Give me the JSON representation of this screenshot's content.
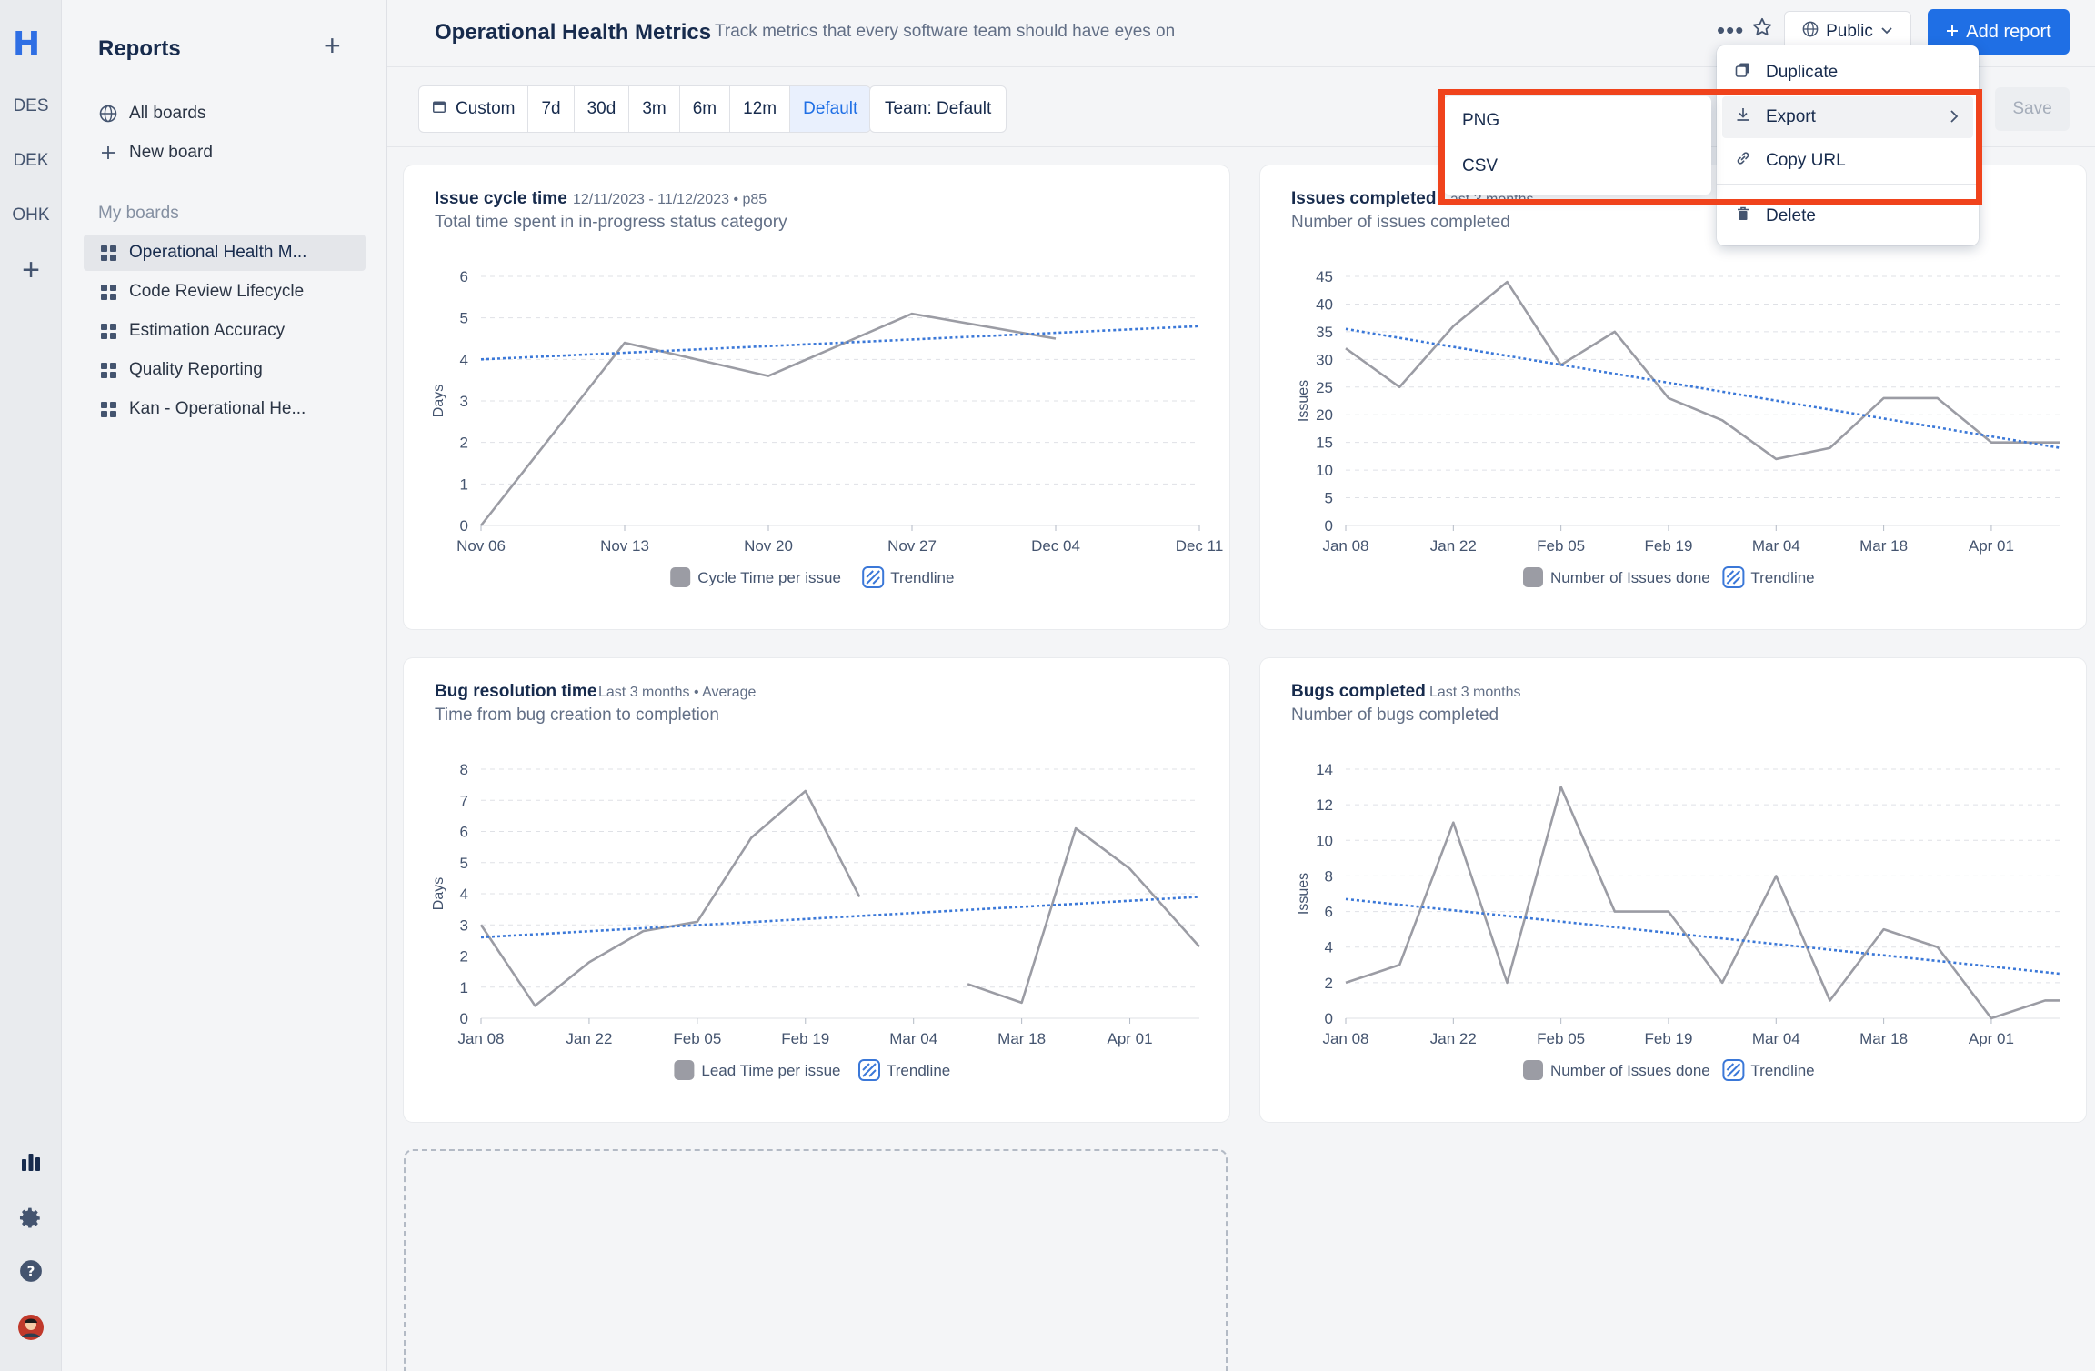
{
  "rail": {
    "logo": "H",
    "projects": [
      "DES",
      "DEK",
      "OHK"
    ],
    "add": "+"
  },
  "sidebar": {
    "title": "Reports",
    "add_label": "+",
    "nav": [
      {
        "label": "All boards",
        "icon": "globe-icon"
      },
      {
        "label": "New board",
        "icon": "plus-icon"
      }
    ],
    "section_label": "My boards",
    "boards": [
      {
        "label": "Operational Health M...",
        "active": true
      },
      {
        "label": "Code Review Lifecycle",
        "active": false
      },
      {
        "label": "Estimation Accuracy",
        "active": false
      },
      {
        "label": "Quality Reporting",
        "active": false
      },
      {
        "label": "Kan - Operational He...",
        "active": false
      }
    ]
  },
  "header": {
    "title": "Operational Health Metrics",
    "description": "Track metrics that every software team should have eyes on",
    "more_label": "•••",
    "visibility_label": "Public",
    "add_report_label": "Add report"
  },
  "toolbar": {
    "custom_label": "Custom",
    "ranges": [
      "7d",
      "30d",
      "3m",
      "6m",
      "12m",
      "Default"
    ],
    "selected_range": "Default",
    "team_label": "Team: Default",
    "save_label": "Save"
  },
  "menu": {
    "items": [
      "Duplicate",
      "Export",
      "Copy URL",
      "Delete"
    ],
    "highlighted": "Export",
    "export_submenu": [
      "PNG",
      "CSV"
    ]
  },
  "colors": {
    "accent": "#1f6fe5",
    "trend": "#3b78d8",
    "series": "#9b9ca4",
    "highlight": "#f0431c"
  },
  "cards": [
    {
      "title": "Issue cycle time",
      "meta": "12/11/2023 - 11/12/2023 • p85",
      "subtitle": "Total time spent in in-progress status category",
      "legend": [
        "Cycle Time per issue",
        "Trendline"
      ]
    },
    {
      "title": "Issues completed",
      "meta": "Last 3 months",
      "subtitle": "Number of issues completed",
      "legend": [
        "Number of Issues done",
        "Trendline"
      ]
    },
    {
      "title": "Bug resolution time",
      "meta": "Last 3 months • Average",
      "subtitle": "Time from bug creation to completion",
      "legend": [
        "Lead Time per issue",
        "Trendline"
      ]
    },
    {
      "title": "Bugs completed",
      "meta": "Last 3 months",
      "subtitle": "Number of bugs completed",
      "legend": [
        "Number of Issues done",
        "Trendline"
      ]
    }
  ],
  "chart_data": [
    {
      "type": "line",
      "ylabel": "Days",
      "ylim": [
        0,
        6
      ],
      "yticks": [
        0,
        1,
        2,
        3,
        4,
        5,
        6
      ],
      "xlim": [
        0,
        35
      ],
      "xtick_labels": [
        "Nov 06",
        "Nov 13",
        "Nov 20",
        "Nov 27",
        "Dec 04",
        "Dec 11"
      ],
      "xtick_pos": [
        0,
        7,
        14,
        21,
        28,
        35
      ],
      "series": [
        {
          "name": "Cycle Time per issue",
          "x": [
            0,
            7,
            14,
            21,
            28
          ],
          "y": [
            0,
            4.4,
            3.6,
            5.1,
            4.5
          ]
        },
        {
          "name": "Trendline",
          "x": [
            0,
            35
          ],
          "y": [
            4.0,
            4.8
          ]
        }
      ]
    },
    {
      "type": "line",
      "ylabel": "Issues",
      "ylim": [
        0,
        45
      ],
      "yticks": [
        0,
        5,
        10,
        15,
        20,
        25,
        30,
        35,
        40,
        45
      ],
      "xlim": [
        0,
        93
      ],
      "xtick_labels": [
        "Jan 08",
        "Jan 22",
        "Feb 05",
        "Feb 19",
        "Mar 04",
        "Mar 18",
        "Apr 01"
      ],
      "xtick_pos": [
        0,
        14,
        28,
        42,
        56,
        70,
        84
      ],
      "series": [
        {
          "name": "Number of Issues done",
          "x": [
            0,
            7,
            14,
            21,
            28,
            35,
            42,
            49,
            56,
            63,
            70,
            77,
            84,
            91,
            93
          ],
          "y": [
            32,
            25,
            36,
            44,
            29,
            35,
            23,
            19,
            12,
            14,
            23,
            23,
            15,
            15,
            15
          ]
        },
        {
          "name": "Trendline",
          "x": [
            0,
            93
          ],
          "y": [
            35.5,
            14
          ]
        }
      ]
    },
    {
      "type": "line",
      "ylabel": "Days",
      "ylim": [
        0,
        8
      ],
      "yticks": [
        0,
        1,
        2,
        3,
        4,
        5,
        6,
        7,
        8
      ],
      "xlim": [
        0,
        93
      ],
      "xtick_labels": [
        "Jan 08",
        "Jan 22",
        "Feb 05",
        "Feb 19",
        "Mar 04",
        "Mar 18",
        "Apr 01"
      ],
      "xtick_pos": [
        0,
        14,
        28,
        42,
        56,
        70,
        84
      ],
      "series": [
        {
          "name": "Lead Time per issue",
          "segments": [
            {
              "x": [
                0,
                7,
                14,
                21,
                28,
                35,
                42,
                49
              ],
              "y": [
                3.0,
                0.4,
                1.8,
                2.8,
                3.1,
                5.8,
                7.3,
                3.9
              ]
            },
            {
              "x": [
                63,
                70,
                77,
                84,
                93
              ],
              "y": [
                1.1,
                0.5,
                6.1,
                4.8,
                2.3
              ]
            }
          ]
        },
        {
          "name": "Trendline",
          "x": [
            0,
            93
          ],
          "y": [
            2.6,
            3.9
          ]
        }
      ]
    },
    {
      "type": "line",
      "ylabel": "Issues",
      "ylim": [
        0,
        14
      ],
      "yticks": [
        0,
        2,
        4,
        6,
        8,
        10,
        12,
        14
      ],
      "xlim": [
        0,
        93
      ],
      "xtick_labels": [
        "Jan 08",
        "Jan 22",
        "Feb 05",
        "Feb 19",
        "Mar 04",
        "Mar 18",
        "Apr 01"
      ],
      "xtick_pos": [
        0,
        14,
        28,
        42,
        56,
        70,
        84
      ],
      "series": [
        {
          "name": "Number of Issues done",
          "x": [
            0,
            7,
            14,
            21,
            28,
            35,
            42,
            49,
            56,
            63,
            70,
            77,
            84,
            91,
            93
          ],
          "y": [
            2,
            3,
            11,
            2,
            13,
            6,
            6,
            2,
            8,
            1,
            5,
            4,
            0,
            1,
            1
          ]
        },
        {
          "name": "Trendline",
          "x": [
            0,
            93
          ],
          "y": [
            6.7,
            2.5
          ]
        }
      ]
    }
  ]
}
